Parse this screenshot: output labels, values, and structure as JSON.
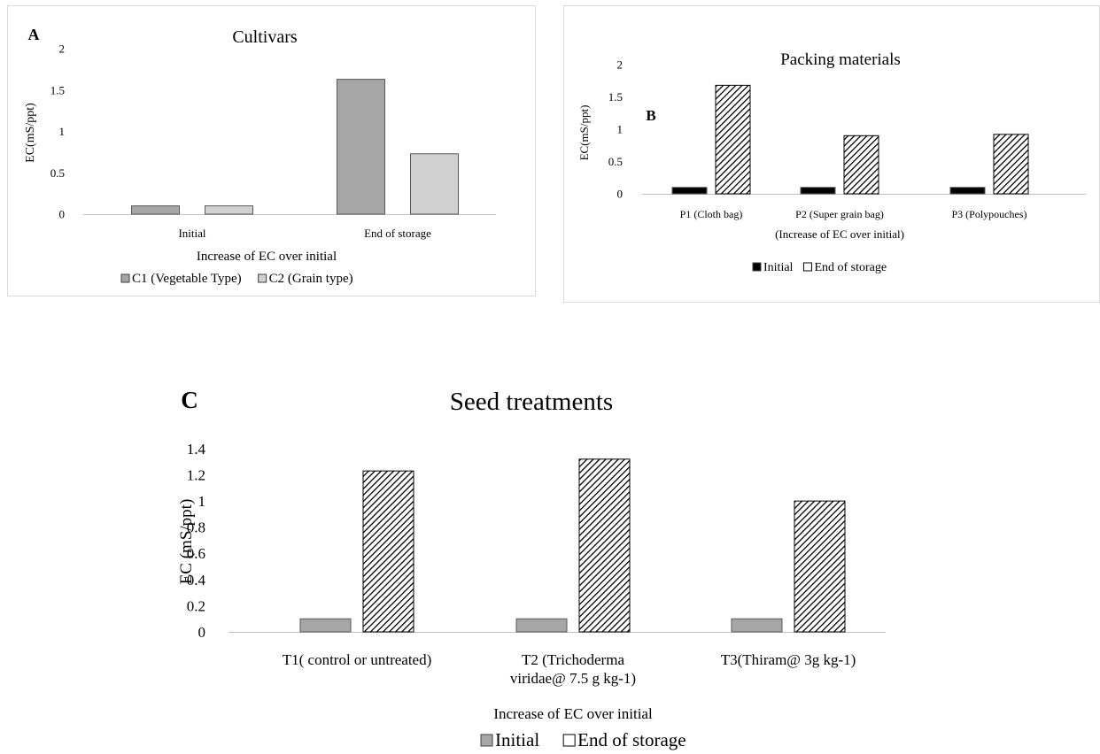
{
  "chart_data": [
    {
      "type": "bar",
      "panel_label": "A",
      "title": "Cultivars",
      "xlabel": "Increase of EC  over initial",
      "ylabel": "EC(mS/ppt)",
      "categories": [
        "Initial",
        "End of storage"
      ],
      "ylim": [
        0,
        2
      ],
      "yticks": [
        "0",
        "0.5",
        "1",
        "1.5",
        "2"
      ],
      "grid": false,
      "legend_position": "bottom",
      "series": [
        {
          "name": "C1 (Vegetable Type)",
          "values": [
            0.1,
            1.63
          ],
          "color": "#a6a6a6",
          "pattern": "solid"
        },
        {
          "name": "C2 (Grain type)",
          "values": [
            0.1,
            0.73
          ],
          "color": "#d0d0d0",
          "pattern": "solid"
        }
      ]
    },
    {
      "type": "bar",
      "panel_label": "B",
      "title": "Packing materials",
      "xlabel": "(Increase of EC  over initial)",
      "ylabel": "EC(mS/ppt)",
      "categories": [
        "P1 (Cloth bag)",
        "P2 (Super grain bag)",
        "P3 (Polypouches)"
      ],
      "ylim": [
        0,
        2
      ],
      "yticks": [
        "0",
        "0.5",
        "1",
        "1.5",
        "2"
      ],
      "grid": false,
      "legend_position": "bottom",
      "series": [
        {
          "name": "Initial",
          "values": [
            0.1,
            0.1,
            0.1
          ],
          "color": "#000000",
          "pattern": "solid"
        },
        {
          "name": "End of storage",
          "values": [
            1.68,
            0.9,
            0.92
          ],
          "color": "#000000",
          "pattern": "hatch"
        }
      ]
    },
    {
      "type": "bar",
      "panel_label": "C",
      "title": "Seed treatments",
      "xlabel": "Increase of EC  over initial",
      "ylabel": "EC  (mS/ppt)",
      "categories": [
        [
          "T1( control or untreated)"
        ],
        [
          "T2 (Trichoderma",
          "viridae@ 7.5 g kg-1)"
        ],
        [
          "T3(Thiram@ 3g kg-1)"
        ]
      ],
      "ylim": [
        0,
        1.4
      ],
      "yticks": [
        "0",
        "0.2",
        "0.4",
        "0.6",
        "0.8",
        "1",
        "1.2",
        "1.4"
      ],
      "grid": false,
      "legend_position": "bottom",
      "series": [
        {
          "name": "Initial",
          "values": [
            0.1,
            0.1,
            0.1
          ],
          "color": "#a6a6a6",
          "pattern": "solid"
        },
        {
          "name": "End of storage",
          "values": [
            1.23,
            1.32,
            1.0
          ],
          "color": "#000000",
          "pattern": "hatch"
        }
      ]
    }
  ]
}
